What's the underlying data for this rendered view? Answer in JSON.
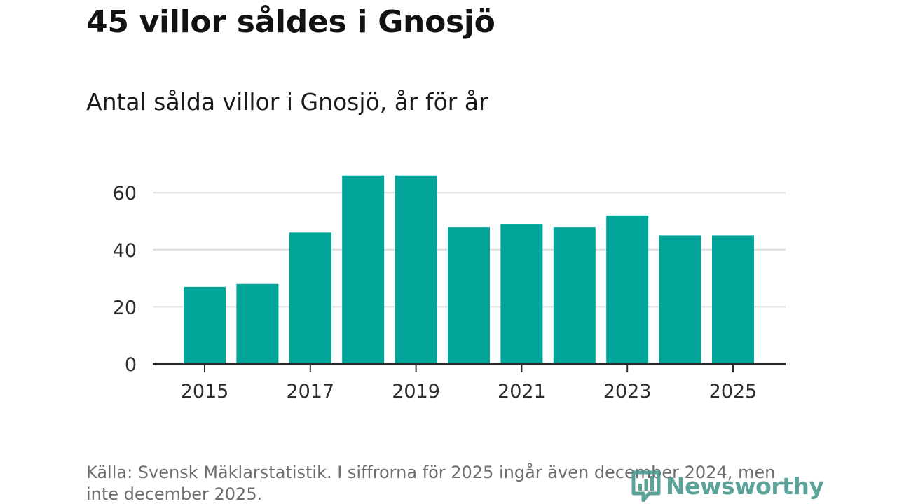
{
  "header": {
    "title": "45 villor såldes i Gnosjö",
    "subtitle": "Antal sålda villor i Gnosjö, år för år"
  },
  "footer": {
    "source": "Källa: Svensk Mäklarstatistik. I siffrorna för 2025 ingår även december 2024, men inte december 2025.",
    "logo_text": "Newsworthy"
  },
  "colors": {
    "bar": "#00a499",
    "grid": "#dcdcdc",
    "axis": "#2d2d2d",
    "logo": "#4a9a8f"
  },
  "chart_data": {
    "type": "bar",
    "title": "Antal sålda villor i Gnosjö, år för år",
    "xlabel": "",
    "ylabel": "",
    "categories": [
      "2015",
      "2016",
      "2017",
      "2018",
      "2019",
      "2020",
      "2021",
      "2022",
      "2023",
      "2024",
      "2025"
    ],
    "values": [
      27,
      28,
      46,
      66,
      66,
      48,
      49,
      48,
      52,
      45,
      45
    ],
    "ylim": [
      0,
      70
    ],
    "yticks": [
      0,
      20,
      40,
      60
    ],
    "xtick_labels": [
      "2015",
      "2017",
      "2019",
      "2021",
      "2023",
      "2025"
    ],
    "grid": true,
    "legend": "none"
  }
}
